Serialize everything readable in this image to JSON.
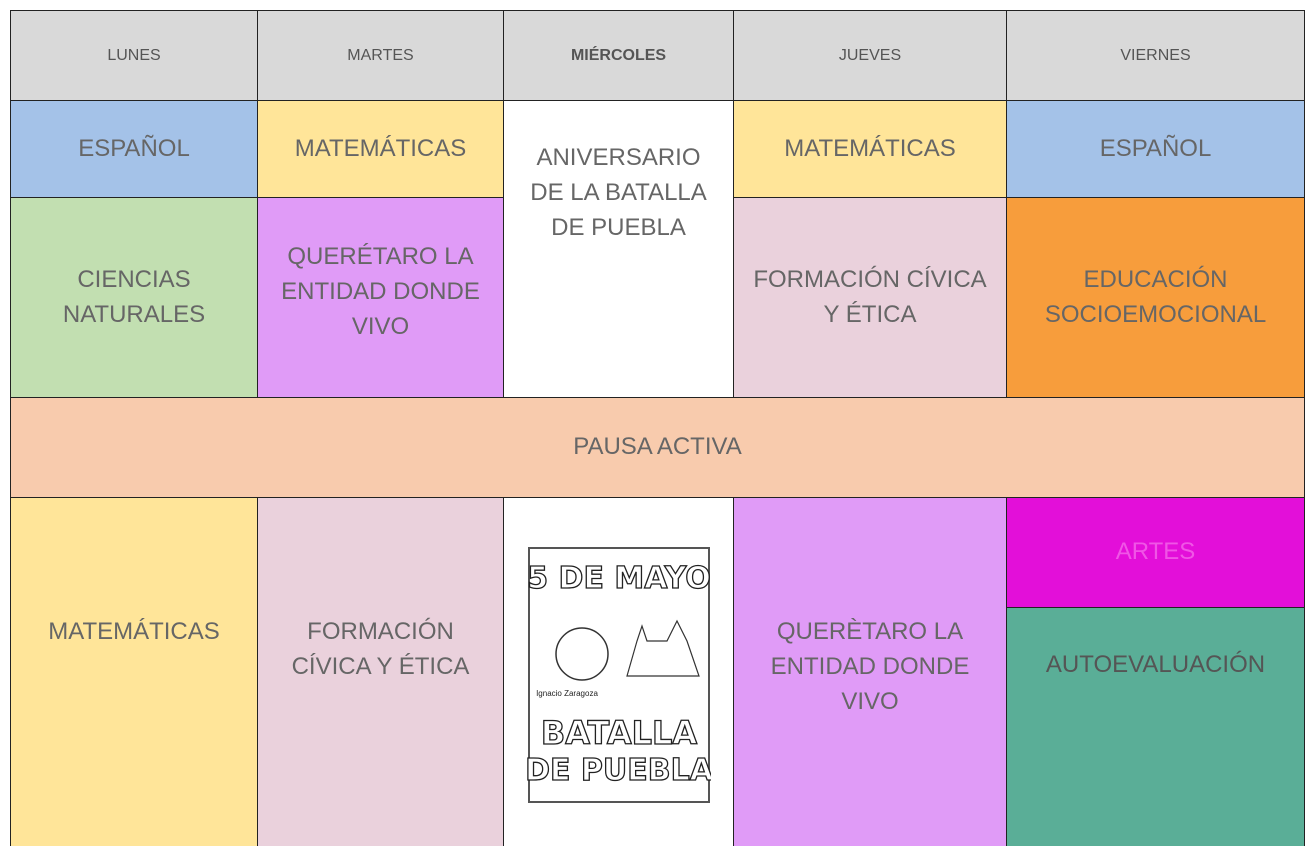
{
  "header": {
    "days": [
      "LUNES",
      "MARTES",
      "MIÉRCOLES",
      "JUEVES",
      "VIERNES"
    ]
  },
  "block1": {
    "row1": [
      "ESPAÑOL",
      "MATEMÁTICAS",
      "ANIVERSARIO DE LA BATALLA DE PUEBLA",
      "MATEMÁTICAS",
      "ESPAÑOL"
    ],
    "row2": [
      "CIENCIAS NATURALES",
      "QUERÉTARO LA ENTIDAD DONDE VIVO",
      "FORMACIÓN CÍVICA Y ÉTICA",
      "EDUCACIÓN SOCIOEMOCIONAL"
    ]
  },
  "break": {
    "label": "PAUSA ACTIVA"
  },
  "block2": {
    "cells": [
      "MATEMÁTICAS",
      "FORMACIÓN CÍVICA Y ÉTICA",
      "QUERÈTARO LA ENTIDAD DONDE VIVO",
      "ARTES",
      "AUTOEVALUACIÓN"
    ],
    "image": {
      "title": "5 DE MAYO",
      "caption": "Ignacio Zaragoza",
      "subtitle": [
        "BATALLA",
        "DE PUEBLA"
      ]
    }
  }
}
